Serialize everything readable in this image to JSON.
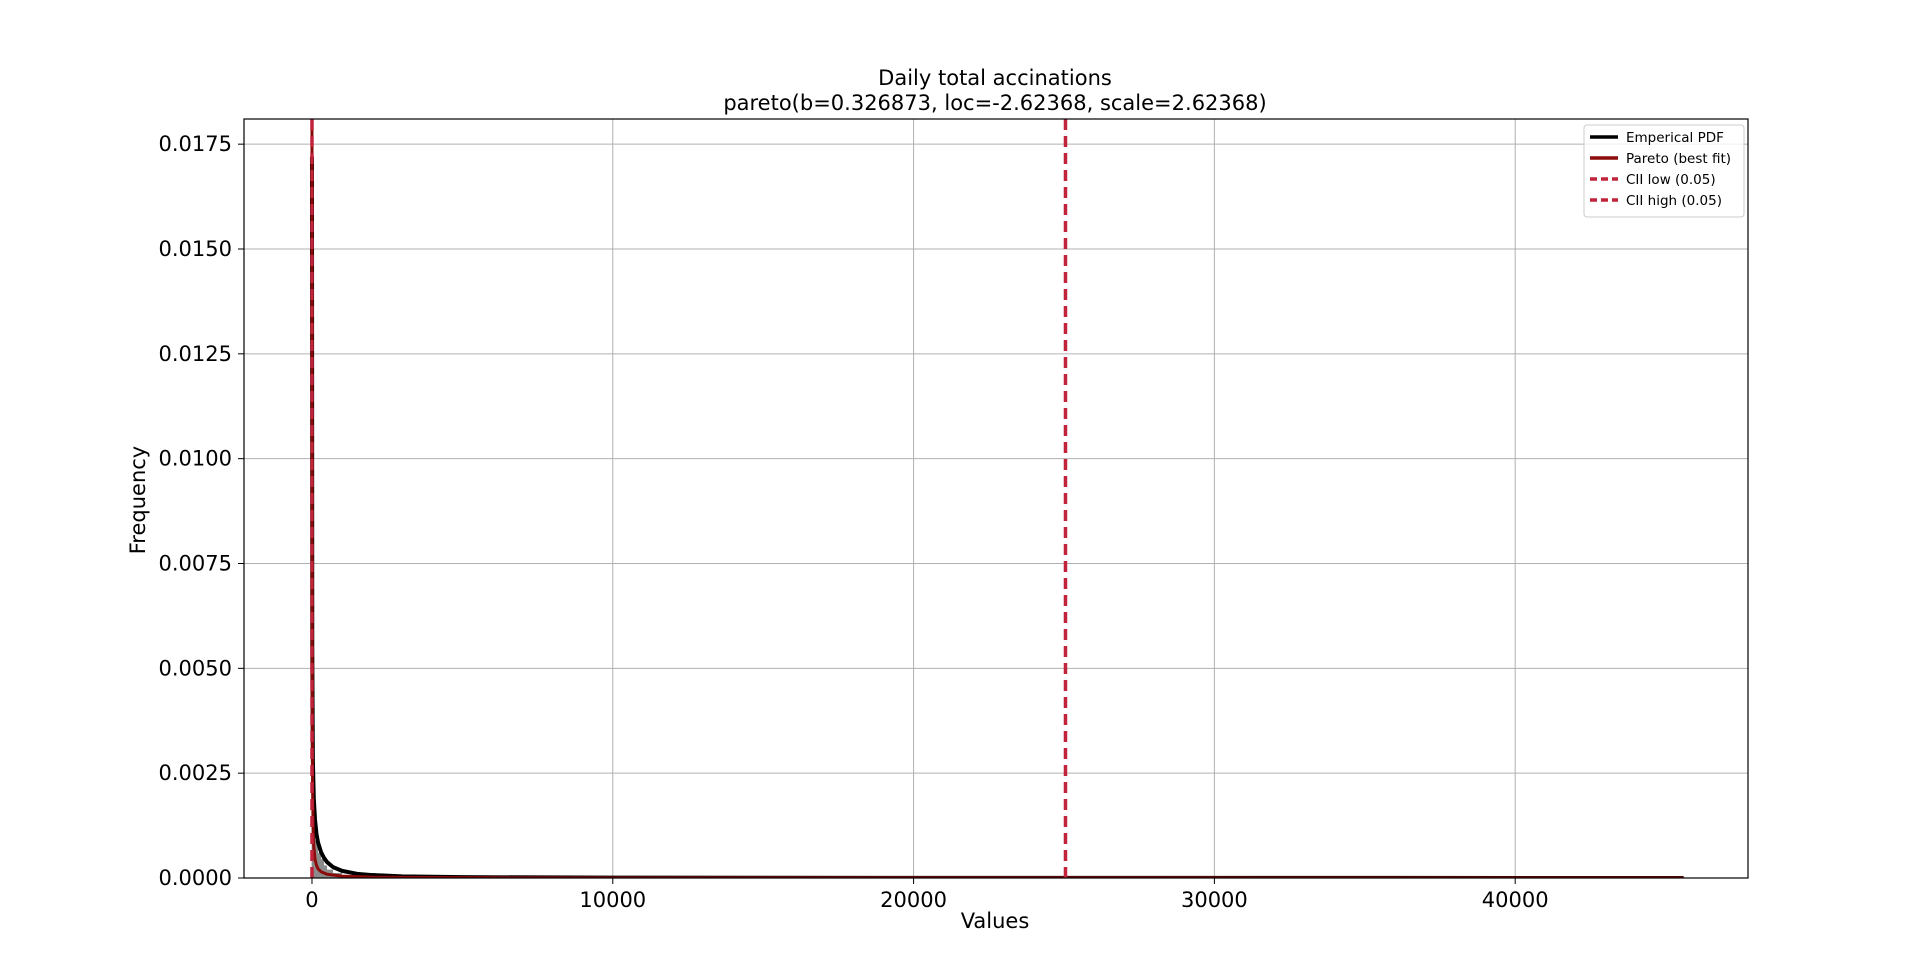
{
  "chart_data": {
    "type": "line",
    "title": "Daily total accinations",
    "subtitle": "pareto(b=0.326873, loc=-2.62368, scale=2.62368)",
    "xlabel": "Values",
    "ylabel": "Frequency",
    "xlim": [
      -2260,
      47740
    ],
    "ylim": [
      0,
      0.0181
    ],
    "xticks": [
      0,
      10000,
      20000,
      30000,
      40000
    ],
    "yticks": [
      0.0,
      0.0025,
      0.005,
      0.0075,
      0.01,
      0.0125,
      0.015,
      0.0175
    ],
    "xtick_labels": [
      "0",
      "10000",
      "20000",
      "30000",
      "40000"
    ],
    "ytick_labels": [
      "0.0000",
      "0.0025",
      "0.0050",
      "0.0075",
      "0.0100",
      "0.0125",
      "0.0150",
      "0.0175"
    ],
    "grid": true,
    "legend_position": "top-right",
    "histogram": {
      "color": "#777777",
      "bins": [
        {
          "x0": 0,
          "x1": 100,
          "y": 0.0017
        },
        {
          "x0": 100,
          "x1": 200,
          "y": 0.0009
        },
        {
          "x0": 200,
          "x1": 300,
          "y": 0.0006
        },
        {
          "x0": 300,
          "x1": 400,
          "y": 0.00045
        },
        {
          "x0": 400,
          "x1": 500,
          "y": 0.0003
        },
        {
          "x0": 500,
          "x1": 700,
          "y": 0.0002
        },
        {
          "x0": 700,
          "x1": 1000,
          "y": 0.00012
        }
      ]
    },
    "series": [
      {
        "name": "Emperical PDF",
        "color": "#000000",
        "style": "solid",
        "x": [
          0,
          10,
          30,
          60,
          100,
          150,
          200,
          300,
          400,
          500,
          700,
          1000,
          1500,
          2000,
          3000,
          5000,
          10000,
          20000,
          45600
        ],
        "y": [
          0.0172,
          0.0055,
          0.0028,
          0.0019,
          0.0014,
          0.00105,
          0.00085,
          0.00062,
          0.00048,
          0.00038,
          0.00026,
          0.00017,
          0.0001,
          7e-05,
          4e-05,
          2e-05,
          8e-06,
          3e-06,
          1e-06
        ]
      },
      {
        "name": "Pareto (best fit)",
        "color": "#8b0a0a",
        "style": "solid",
        "x": [
          0,
          5,
          10,
          20,
          40,
          60,
          100,
          150,
          200,
          300,
          500,
          1000,
          2000,
          5000,
          10000,
          20000,
          45600
        ],
        "y": [
          0.018,
          0.0062,
          0.0038,
          0.0021,
          0.0011,
          0.00075,
          0.00045,
          0.0003,
          0.00022,
          0.00015,
          9e-05,
          4.5e-05,
          2e-05,
          8e-06,
          4e-06,
          2e-06,
          8e-07
        ]
      },
      {
        "name": "CII low (0.05)",
        "color": "#c0233a",
        "style": "dashed",
        "x_value": 0
      },
      {
        "name": "CII high (0.05)",
        "color": "#c0233a",
        "style": "dashed",
        "x_value": 25050
      }
    ]
  }
}
